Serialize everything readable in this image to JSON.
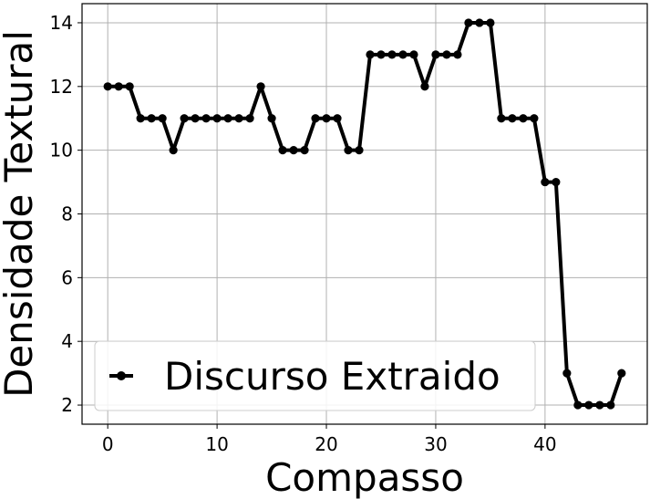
{
  "chart_data": {
    "type": "line",
    "title": "",
    "xlabel": "Compasso",
    "ylabel": "Densidade Textural",
    "xlim": [
      -2.35,
      49.35
    ],
    "ylim": [
      1.4,
      14.6
    ],
    "xticks": [
      0,
      10,
      20,
      30,
      40
    ],
    "yticks": [
      2,
      4,
      6,
      8,
      10,
      12,
      14
    ],
    "grid": true,
    "legend_position": "lower-left",
    "series": [
      {
        "name": "Discurso Extraido",
        "color": "#000000",
        "marker": "circle",
        "x": [
          0,
          1,
          2,
          3,
          4,
          5,
          6,
          7,
          8,
          9,
          10,
          11,
          12,
          13,
          14,
          15,
          16,
          17,
          18,
          19,
          20,
          21,
          22,
          23,
          24,
          25,
          26,
          27,
          28,
          29,
          30,
          31,
          32,
          33,
          34,
          35,
          36,
          37,
          38,
          39,
          40,
          41,
          42,
          43,
          44,
          45,
          46,
          47
        ],
        "y": [
          12,
          12,
          12,
          11,
          11,
          11,
          10,
          11,
          11,
          11,
          11,
          11,
          11,
          11,
          12,
          11,
          10,
          10,
          10,
          11,
          11,
          11,
          10,
          10,
          13,
          13,
          13,
          13,
          13,
          12,
          13,
          13,
          13,
          14,
          14,
          14,
          11,
          11,
          11,
          11,
          9,
          9,
          3,
          2,
          2,
          2,
          2,
          3
        ]
      }
    ]
  }
}
